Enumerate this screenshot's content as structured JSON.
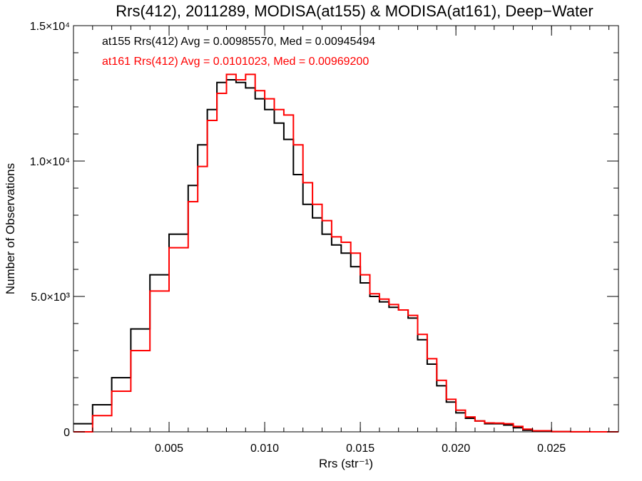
{
  "chart_data": {
    "type": "line",
    "title": "Rrs(412), 2011289, MODISA(at155) & MODISA(at161), Deep−Water",
    "xlabel": "Rrs (str⁻¹)",
    "ylabel": "Number of Observations",
    "xlim": [
      0.0,
      0.0285
    ],
    "ylim": [
      0,
      15000
    ],
    "x_ticks": [
      "0.005",
      "0.010",
      "0.015",
      "0.020",
      "0.025"
    ],
    "x_tick_values": [
      0.005,
      0.01,
      0.015,
      0.02,
      0.025
    ],
    "y_ticks": [
      "0",
      "5.0×10³",
      "1.0×10⁴",
      "1.5×10⁴"
    ],
    "y_tick_values": [
      0,
      5000,
      10000,
      15000
    ],
    "grid": false,
    "legend_position": "top-left",
    "series": [
      {
        "name": "at155 Rrs(412)",
        "color": "#000000",
        "annotation": "at155 Rrs(412) Avg = 0.00985570, Med = 0.00945494",
        "x": [
          0.0,
          0.001,
          0.002,
          0.003,
          0.004,
          0.005,
          0.006,
          0.0065,
          0.007,
          0.0075,
          0.008,
          0.0085,
          0.009,
          0.0095,
          0.01,
          0.0105,
          0.011,
          0.0115,
          0.012,
          0.0125,
          0.013,
          0.0135,
          0.014,
          0.0145,
          0.015,
          0.0155,
          0.016,
          0.0165,
          0.017,
          0.0175,
          0.018,
          0.0185,
          0.019,
          0.0195,
          0.02,
          0.0205,
          0.021,
          0.0215,
          0.022,
          0.0225,
          0.023,
          0.0235,
          0.024,
          0.025,
          0.026,
          0.027,
          0.0285
        ],
        "values": [
          300,
          1000,
          2000,
          3800,
          5800,
          7300,
          9100,
          10600,
          11900,
          12900,
          13000,
          12900,
          12700,
          12300,
          11900,
          11400,
          10800,
          9500,
          8400,
          7900,
          7300,
          6900,
          6600,
          6100,
          5500,
          5000,
          4800,
          4600,
          4500,
          4200,
          3400,
          2500,
          1700,
          1100,
          700,
          500,
          400,
          300,
          300,
          250,
          150,
          60,
          20,
          5,
          0,
          0,
          0
        ]
      },
      {
        "name": "at161 Rrs(412)",
        "color": "#ff0000",
        "annotation": "at161 Rrs(412) Avg = 0.0101023, Med = 0.00969200",
        "x": [
          0.0,
          0.001,
          0.002,
          0.003,
          0.004,
          0.005,
          0.006,
          0.0065,
          0.007,
          0.0075,
          0.008,
          0.0085,
          0.009,
          0.0095,
          0.01,
          0.0105,
          0.011,
          0.0115,
          0.012,
          0.0125,
          0.013,
          0.0135,
          0.014,
          0.0145,
          0.015,
          0.0155,
          0.016,
          0.0165,
          0.017,
          0.0175,
          0.018,
          0.0185,
          0.019,
          0.0195,
          0.02,
          0.0205,
          0.021,
          0.0215,
          0.022,
          0.0225,
          0.023,
          0.0235,
          0.024,
          0.025,
          0.026,
          0.027,
          0.0285
        ],
        "values": [
          0,
          600,
          1500,
          3000,
          5200,
          6800,
          8500,
          9800,
          11500,
          12500,
          13200,
          13000,
          13200,
          12600,
          12300,
          11900,
          11700,
          10600,
          9200,
          8400,
          7800,
          7200,
          7000,
          6600,
          5800,
          5100,
          4900,
          4700,
          4500,
          4300,
          3600,
          2700,
          1900,
          1200,
          800,
          550,
          400,
          330,
          320,
          300,
          200,
          100,
          40,
          10,
          2,
          0,
          0
        ]
      }
    ]
  }
}
